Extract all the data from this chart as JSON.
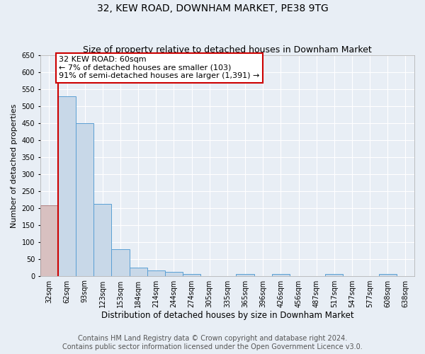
{
  "title": "32, KEW ROAD, DOWNHAM MARKET, PE38 9TG",
  "subtitle": "Size of property relative to detached houses in Downham Market",
  "xlabel": "Distribution of detached houses by size in Downham Market",
  "ylabel": "Number of detached properties",
  "categories": [
    "32sqm",
    "62sqm",
    "93sqm",
    "123sqm",
    "153sqm",
    "184sqm",
    "214sqm",
    "244sqm",
    "274sqm",
    "305sqm",
    "335sqm",
    "365sqm",
    "396sqm",
    "426sqm",
    "456sqm",
    "487sqm",
    "517sqm",
    "547sqm",
    "577sqm",
    "608sqm",
    "638sqm"
  ],
  "values": [
    208,
    530,
    450,
    213,
    78,
    25,
    15,
    11,
    5,
    0,
    0,
    5,
    0,
    5,
    0,
    0,
    5,
    0,
    0,
    5,
    0
  ],
  "bar_color_left": "#d8c0c0",
  "bar_color_right": "#c8d8e8",
  "bar_edge_color_left": "#b08080",
  "bar_edge_color_right": "#5a9fd4",
  "vline_position": 0.5,
  "vline_color": "#cc0000",
  "ylim": [
    0,
    650
  ],
  "yticks": [
    0,
    50,
    100,
    150,
    200,
    250,
    300,
    350,
    400,
    450,
    500,
    550,
    600,
    650
  ],
  "annotation_text": "32 KEW ROAD: 60sqm\n← 7% of detached houses are smaller (103)\n91% of semi-detached houses are larger (1,391) →",
  "annotation_box_facecolor": "#ffffff",
  "annotation_box_edgecolor": "#cc0000",
  "footer_line1": "Contains HM Land Registry data © Crown copyright and database right 2024.",
  "footer_line2": "Contains public sector information licensed under the Open Government Licence v3.0.",
  "background_color": "#e8eef5",
  "plot_background_color": "#e8eef5",
  "grid_color": "#ffffff",
  "title_fontsize": 10,
  "subtitle_fontsize": 9,
  "xlabel_fontsize": 8.5,
  "ylabel_fontsize": 8,
  "tick_fontsize": 7,
  "annotation_fontsize": 8,
  "footer_fontsize": 7
}
